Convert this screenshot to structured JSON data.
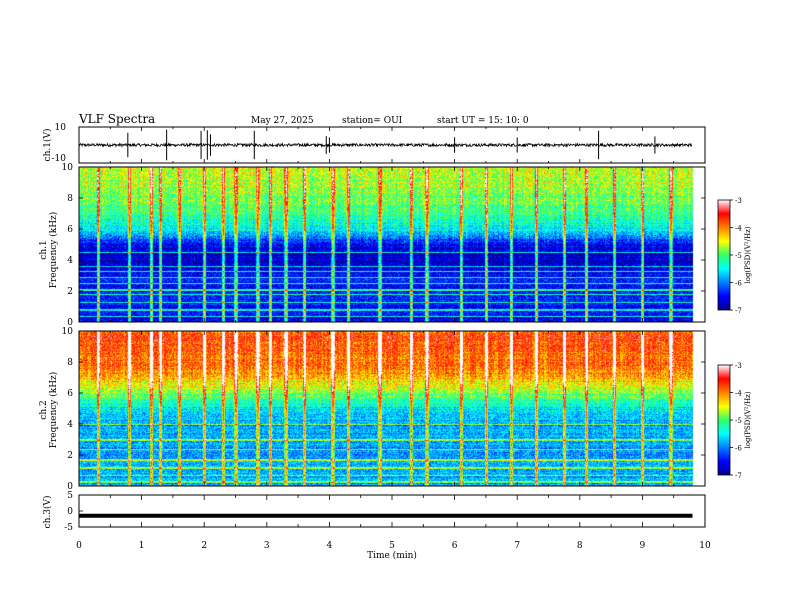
{
  "header": {
    "title": "VLF Spectra",
    "date": "May 27, 2025",
    "station": "station= OUI",
    "start": "start  UT  =   15: 10: 0"
  },
  "chart_data": [
    {
      "type": "line",
      "panel": "waveform-ch1",
      "ylabel": "ch.1(V)",
      "ylim": [
        -10,
        10
      ],
      "yticks": [
        10,
        -10
      ],
      "xlim": [
        0,
        10
      ],
      "baseline": 0,
      "signal_end_min": 9.8,
      "spike_times_min": [
        0.78,
        1.4,
        1.95,
        2.05,
        2.1,
        2.8,
        3.95,
        4.0,
        6.0,
        7.0,
        8.3,
        9.2
      ]
    },
    {
      "type": "heatmap",
      "panel": "spectrogram-ch1",
      "xlabel": "",
      "ylabel": "ch.1\nFrequency  (kHz)",
      "xlim": [
        0,
        10
      ],
      "ylim": [
        0,
        10
      ],
      "yticks": [
        0,
        2,
        4,
        6,
        8,
        10
      ],
      "signal_end_min": 9.8,
      "colorbar": {
        "label": "log(PSD)(V²/Hz)",
        "range": [
          -7,
          -3
        ],
        "ticks": [
          -3,
          -4,
          -5,
          -6,
          -7
        ]
      },
      "profile": {
        "freq_khz": [
          0,
          1,
          2,
          3,
          4,
          5,
          6,
          7,
          8,
          9,
          10
        ],
        "level": [
          -6.6,
          -6.5,
          -6.4,
          -6.5,
          -6.8,
          -6.6,
          -5.5,
          -5.2,
          -4.9,
          -4.7,
          -4.6
        ]
      },
      "lines_khz": [
        0.4,
        0.8,
        1.3,
        1.8,
        2.1,
        2.5,
        2.9,
        3.3,
        3.6,
        4.5
      ],
      "spherics_min": [
        0.3,
        0.8,
        1.15,
        1.3,
        1.6,
        2.0,
        2.3,
        2.5,
        2.85,
        3.05,
        3.3,
        3.6,
        4.05,
        4.3,
        4.8,
        5.3,
        5.55,
        6.1,
        6.5,
        6.9,
        7.3,
        7.75,
        8.1,
        8.55,
        9.0,
        9.45
      ]
    },
    {
      "type": "heatmap",
      "panel": "spectrogram-ch2",
      "xlabel": "",
      "ylabel": "ch.2\nFrequency  (kHz)",
      "xlim": [
        0,
        10
      ],
      "ylim": [
        0,
        10
      ],
      "yticks": [
        0,
        2,
        4,
        6,
        8,
        10
      ],
      "signal_end_min": 9.8,
      "colorbar": {
        "label": "log(PSD)(V²/Hz)",
        "range": [
          -7,
          -3
        ],
        "ticks": [
          -3,
          -4,
          -5,
          -6,
          -7
        ]
      },
      "profile": {
        "freq_khz": [
          0,
          1,
          2,
          3,
          4,
          5,
          6,
          7,
          8,
          9,
          10
        ],
        "level": [
          -5.9,
          -5.8,
          -5.9,
          -5.8,
          -5.9,
          -5.6,
          -4.9,
          -4.2,
          -3.9,
          -3.8,
          -3.8
        ]
      },
      "lines_khz": [
        0.3,
        0.7,
        1.2,
        1.7,
        2.4,
        3.0,
        4.0
      ],
      "spherics_min": [
        0.3,
        0.8,
        1.15,
        1.3,
        1.6,
        2.0,
        2.3,
        2.5,
        2.85,
        3.05,
        3.3,
        3.6,
        4.05,
        4.3,
        4.8,
        5.3,
        5.55,
        6.1,
        6.5,
        6.9,
        7.3,
        7.75,
        8.1,
        8.55,
        9.0,
        9.45
      ]
    },
    {
      "type": "line",
      "panel": "waveform-ch3",
      "xlabel": "Time  (min)",
      "ylabel": "ch.3(V)",
      "ylim": [
        -5,
        5
      ],
      "yticks": [
        5,
        0,
        -5
      ],
      "xlim": [
        0,
        10
      ],
      "xticks": [
        0,
        1,
        2,
        3,
        4,
        5,
        6,
        7,
        8,
        9,
        10
      ],
      "level": -1.5,
      "signal_end_min": 9.8
    }
  ]
}
